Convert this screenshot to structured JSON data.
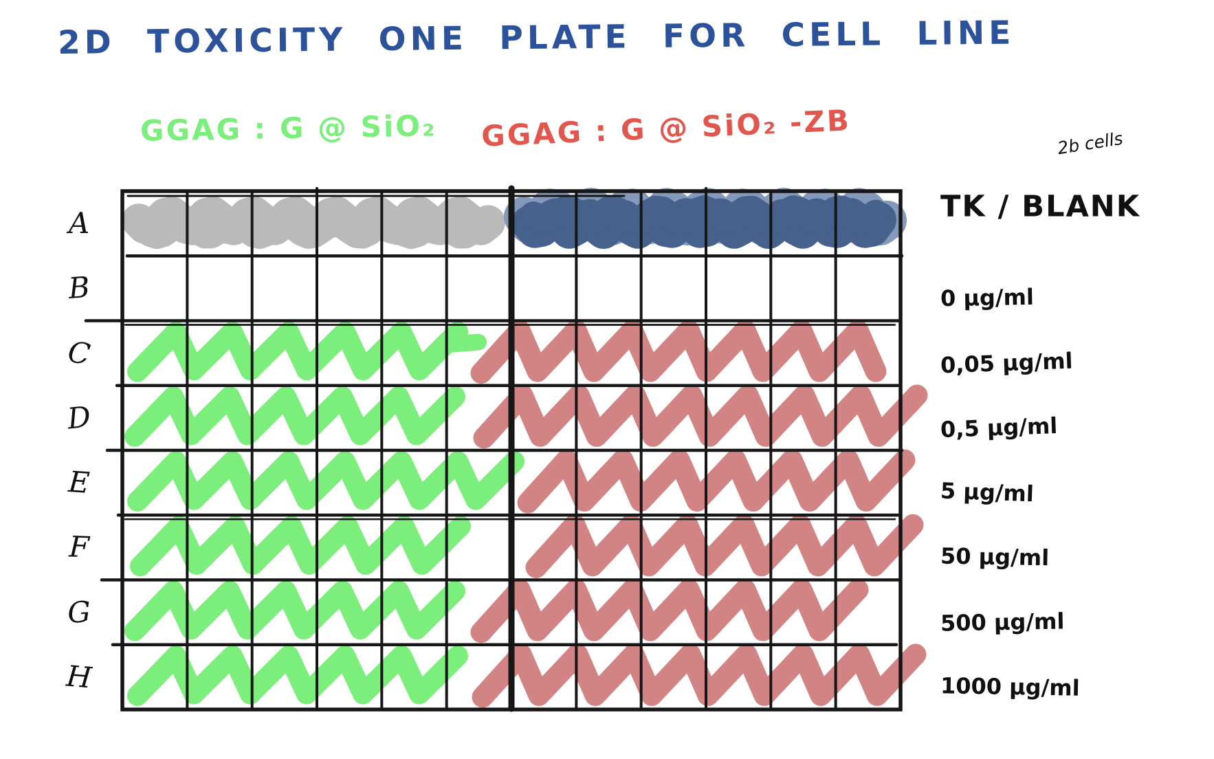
{
  "title": "2D TOXICITY ONE PLATE FOR CELL LINE",
  "colors": {
    "title_ink": "#2b529b",
    "handwriting_ink": "#101010",
    "grid_ink": "#161616",
    "green": "#7bee7b",
    "red": "#e2574d",
    "red_fill": "#d28383",
    "blue_fill": "#45618c",
    "blue_fill_light": "#8599bb",
    "gray_fill": "#bababa"
  },
  "plate": {
    "column_count": 12,
    "row_count": 8,
    "left_group": {
      "label": "GGAG : G @ SiO₂",
      "fill_name": "green"
    },
    "right_group": {
      "label": "GGAG : G @ SiO₂ -ZB",
      "fill_name": "red"
    },
    "rows": [
      {
        "label": "A",
        "annotation": "TK / BLANK",
        "note": "2b cells",
        "left_fill": "gray",
        "right_fill": "blue"
      },
      {
        "label": "B",
        "annotation": "0 µg/ml",
        "left_fill": "none",
        "right_fill": "none"
      },
      {
        "label": "C",
        "annotation": "0,05 µg/ml",
        "left_fill": "green",
        "right_fill": "red"
      },
      {
        "label": "D",
        "annotation": "0,5 µg/ml",
        "left_fill": "green",
        "right_fill": "red"
      },
      {
        "label": "E",
        "annotation": "5 µg/ml",
        "left_fill": "green",
        "right_fill": "red"
      },
      {
        "label": "F",
        "annotation": "50 µg/ml",
        "left_fill": "green",
        "right_fill": "red"
      },
      {
        "label": "G",
        "annotation": "500 µg/ml",
        "left_fill": "green",
        "right_fill": "red"
      },
      {
        "label": "H",
        "annotation": "1000 µg/ml",
        "left_fill": "green",
        "right_fill": "red"
      }
    ]
  }
}
